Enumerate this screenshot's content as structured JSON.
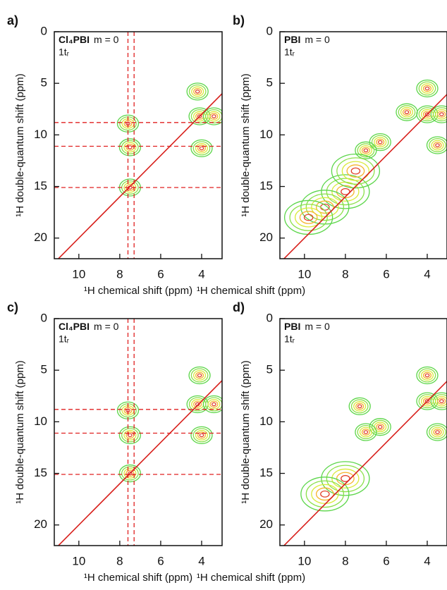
{
  "chart_data": [
    {
      "type": "contour",
      "panel": "a)",
      "compound": "Cl₄PBI",
      "condition": "m = 0",
      "rotor": "1tᵣ",
      "xlabel": "¹H chemical shift (ppm)",
      "ylabel": "¹H double-quantum shift (ppm)",
      "xlim": [
        11.2,
        3
      ],
      "ylim": [
        22,
        0
      ],
      "xticks": [
        10,
        8,
        6,
        4
      ],
      "yticks": [
        0,
        5,
        10,
        15,
        20
      ],
      "vlines": [
        7.6,
        7.3
      ],
      "hlines": [
        8.8,
        11.1,
        15.1
      ],
      "peaks": {
        "x": [
          7.6,
          7.5,
          7.5,
          4.2,
          4.1,
          3.4,
          4.0
        ],
        "y": [
          8.9,
          11.2,
          15.1,
          5.8,
          8.2,
          8.2,
          11.3
        ]
      }
    },
    {
      "type": "contour",
      "panel": "b)",
      "compound": "PBI",
      "condition": "m = 0",
      "rotor": "1tᵣ",
      "xlabel": "¹H chemical shift (ppm)",
      "ylabel": "¹H double-quantum shift (ppm)",
      "xlim": [
        11.2,
        3
      ],
      "ylim": [
        22,
        0
      ],
      "xticks": [
        10,
        8,
        6,
        4
      ],
      "yticks": [
        0,
        5,
        10,
        15,
        20
      ],
      "vlines": [],
      "hlines": [],
      "peaks": {
        "x": [
          4.0,
          4.0,
          3.3,
          6.3,
          7.0,
          8.0,
          9.0,
          5.0,
          3.5,
          7.5,
          9.8
        ],
        "y": [
          5.5,
          8.0,
          8.0,
          10.7,
          11.5,
          15.5,
          17.0,
          7.8,
          11.0,
          13.5,
          18.0
        ]
      }
    },
    {
      "type": "contour",
      "panel": "c)",
      "compound": "Cl₄PBI",
      "condition": "m = 0",
      "rotor": "1tᵣ",
      "xlabel": "¹H chemical shift (ppm)",
      "ylabel": "¹H double-quantum shift (ppm)",
      "xlim": [
        11.2,
        3
      ],
      "ylim": [
        22,
        0
      ],
      "xticks": [
        10,
        8,
        6,
        4
      ],
      "yticks": [
        0,
        5,
        10,
        15,
        20
      ],
      "vlines": [
        7.6,
        7.3
      ],
      "hlines": [
        8.8,
        11.1,
        15.1
      ],
      "peaks": {
        "x": [
          7.6,
          7.5,
          7.5,
          4.1,
          4.2,
          3.4,
          4.0
        ],
        "y": [
          8.9,
          11.3,
          15.0,
          5.5,
          8.3,
          8.3,
          11.3
        ]
      }
    },
    {
      "type": "contour",
      "panel": "d)",
      "compound": "PBI",
      "condition": "m = 0",
      "rotor": "1tᵣ",
      "xlabel": "¹H chemical shift (ppm)",
      "ylabel": "¹H double-quantum shift (ppm)",
      "xlim": [
        11.2,
        3
      ],
      "ylim": [
        22,
        0
      ],
      "xticks": [
        10,
        8,
        6,
        4
      ],
      "yticks": [
        0,
        5,
        10,
        15,
        20
      ],
      "vlines": [],
      "hlines": [],
      "peaks": {
        "x": [
          4.0,
          4.0,
          3.3,
          6.3,
          7.0,
          8.0,
          9.0,
          7.3,
          3.5
        ],
        "y": [
          5.5,
          8.0,
          8.0,
          10.5,
          11.0,
          15.5,
          17.0,
          8.5,
          11.0
        ]
      }
    }
  ]
}
